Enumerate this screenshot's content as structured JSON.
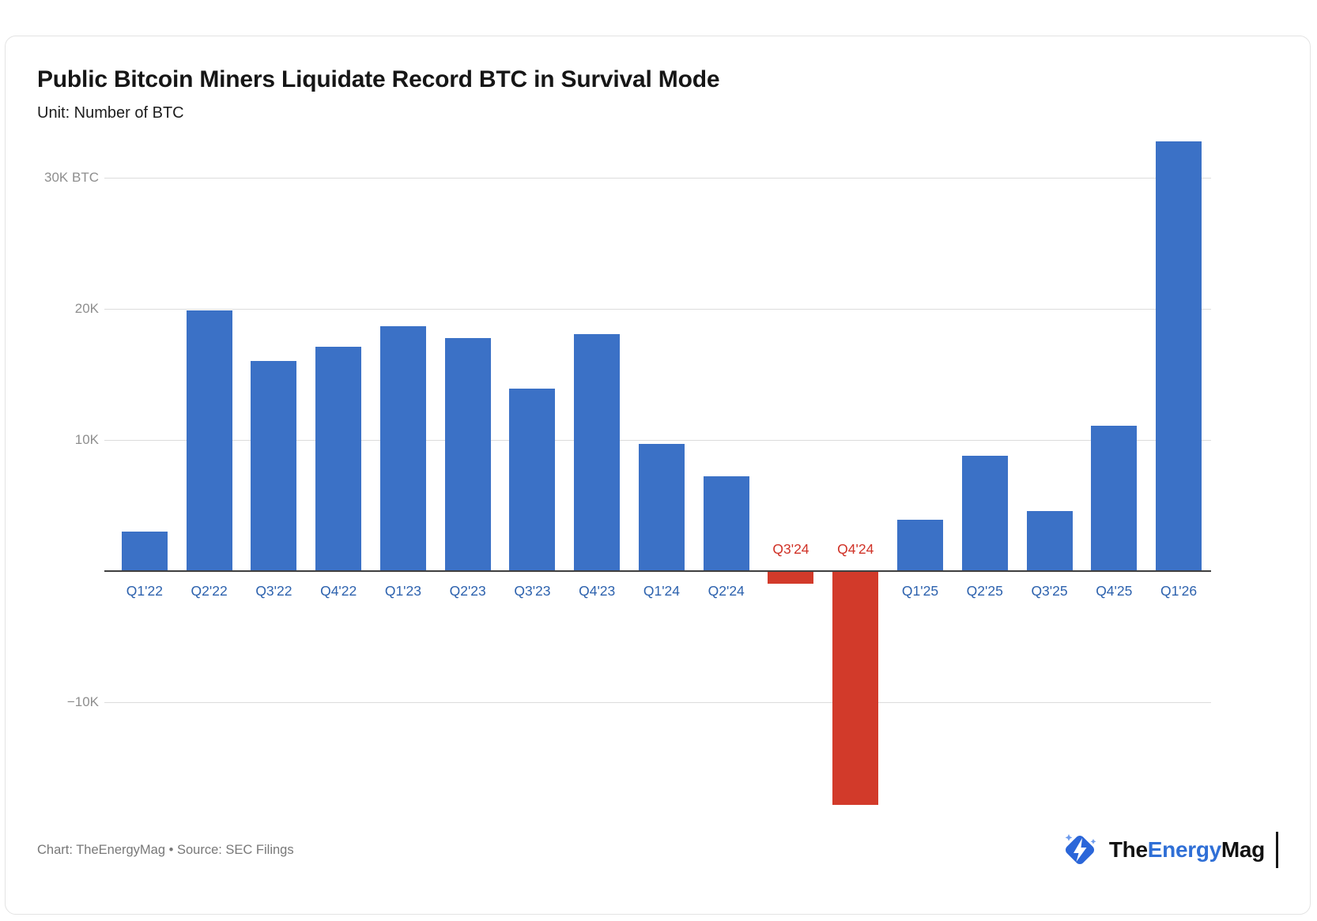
{
  "header": {
    "title": "Public Bitcoin Miners Liquidate Record BTC in Survival Mode",
    "subtitle": "Unit: Number of BTC"
  },
  "chart_data": {
    "type": "bar",
    "title": "Public Bitcoin Miners Liquidate Record BTC in Survival Mode",
    "unit": "BTC",
    "categories": [
      "Q1'22",
      "Q2'22",
      "Q3'22",
      "Q4'22",
      "Q1'23",
      "Q2'23",
      "Q3'23",
      "Q4'23",
      "Q1'24",
      "Q2'24",
      "Q3'24",
      "Q4'24",
      "Q1'25",
      "Q2'25",
      "Q3'25",
      "Q4'25",
      "Q1'26"
    ],
    "values": [
      3000,
      19900,
      16000,
      17100,
      18700,
      17800,
      13900,
      18100,
      9700,
      7200,
      -900,
      -17800,
      3900,
      8800,
      4600,
      11100,
      32800
    ],
    "yticks": [
      {
        "value": 30000,
        "label": "30K BTC"
      },
      {
        "value": 20000,
        "label": "20K"
      },
      {
        "value": 10000,
        "label": "10K"
      },
      {
        "value": -10000,
        "label": "−10K"
      }
    ],
    "ylim": [
      -20000,
      34000
    ],
    "grid": true,
    "legend": "none",
    "positive_color": "#3b71c6",
    "negative_color": "#d23a2a",
    "label_color_positive": "#2d62ae",
    "label_color_negative": "#d03227",
    "tick_color": "#8e8e8e"
  },
  "footer": {
    "credit": "Chart: TheEnergyMag • Source: SEC Filings",
    "logo": {
      "the": "The",
      "energy": "Energy",
      "mag": "Mag"
    }
  }
}
